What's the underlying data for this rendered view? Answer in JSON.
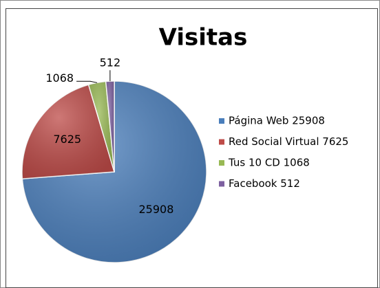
{
  "chart_data": {
    "type": "pie",
    "title": "Visitas",
    "categories": [
      "Página Web 25908",
      "Red Social Virtual 7625",
      "Tus 10 CD 1068",
      "Facebook 512"
    ],
    "values": [
      25908,
      7625,
      1068,
      512
    ],
    "colors": [
      "#4a7ebb",
      "#be4b48",
      "#98b954",
      "#7d60a0"
    ],
    "legend": "right"
  }
}
